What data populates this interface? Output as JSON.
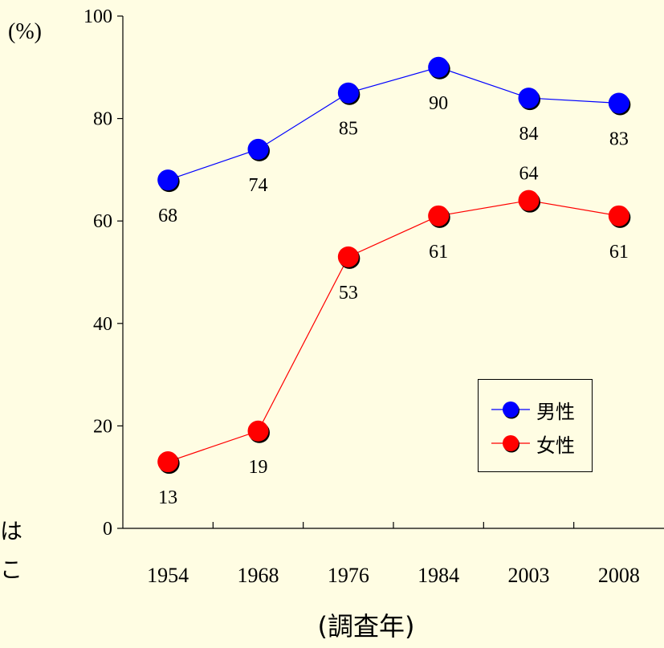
{
  "chart_data": {
    "type": "line",
    "categories": [
      "1954",
      "1968",
      "1976",
      "1984",
      "2003",
      "2008"
    ],
    "series": [
      {
        "name": "男性",
        "values": [
          68,
          74,
          85,
          90,
          84,
          83
        ],
        "color": "#0000ff",
        "label_position": [
          "below",
          "below",
          "below",
          "below",
          "below",
          "below"
        ]
      },
      {
        "name": "女性",
        "values": [
          13,
          19,
          53,
          61,
          64,
          61
        ],
        "color": "#ff0000",
        "label_position": [
          "below",
          "below",
          "below",
          "below",
          "above",
          "below"
        ]
      }
    ],
    "ylim": [
      0,
      100
    ],
    "yticks": [
      "0",
      "20",
      "40",
      "60",
      "80",
      "100"
    ],
    "ylabel": "(%)",
    "xlabel": "(調査年)",
    "legend_position": "lower-right",
    "grid": false
  },
  "side_text": [
    "は",
    "こ"
  ]
}
